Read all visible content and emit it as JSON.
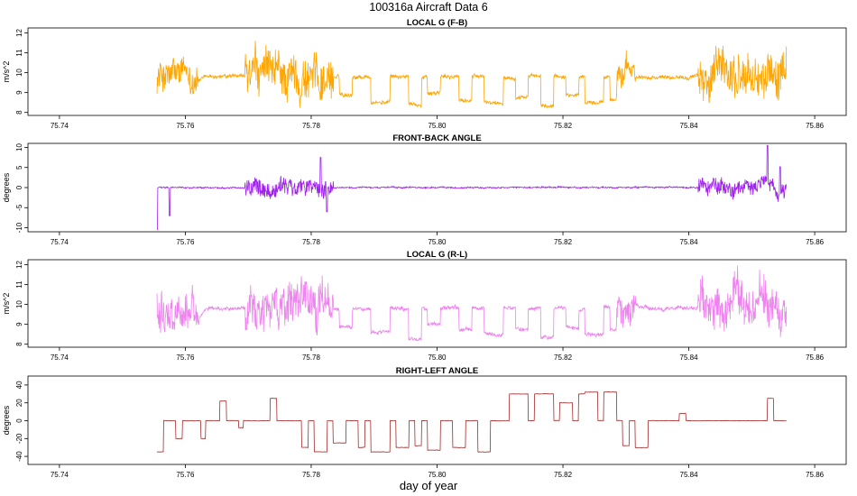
{
  "figure": {
    "title": "100316a   Aircraft Data 6",
    "xlabel": "day of year"
  },
  "chart_data": [
    {
      "type": "line",
      "title": "LOCAL G (F-B)",
      "ylabel": "m/s^2",
      "color": "#FFA500",
      "xlim": [
        75.735,
        75.865
      ],
      "ylim": [
        7.85,
        12.25
      ],
      "xticks": [
        75.74,
        75.76,
        75.78,
        75.8,
        75.82,
        75.84,
        75.86
      ],
      "yticks": [
        8,
        9,
        10,
        11,
        12
      ],
      "x_range": [
        75.7555,
        75.8555
      ],
      "baseline": 9.8,
      "noise_amp": 0.8,
      "noisy_segments": [
        [
          75.7555,
          75.762,
          0.8
        ],
        [
          75.7695,
          75.7835,
          1.1
        ],
        [
          75.8285,
          75.8315,
          0.7
        ],
        [
          75.8415,
          75.8555,
          1.1
        ]
      ],
      "steps": [
        {
          "x0": 75.7845,
          "x1": 75.7865,
          "y": 8.9
        },
        {
          "x0": 75.7895,
          "x1": 75.7925,
          "y": 8.5
        },
        {
          "x0": 75.7955,
          "x1": 75.7975,
          "y": 8.4
        },
        {
          "x0": 75.7985,
          "x1": 75.8005,
          "y": 9.0
        },
        {
          "x0": 75.8035,
          "x1": 75.8055,
          "y": 8.6
        },
        {
          "x0": 75.8075,
          "x1": 75.8105,
          "y": 8.5
        },
        {
          "x0": 75.8125,
          "x1": 75.8145,
          "y": 8.8
        },
        {
          "x0": 75.8165,
          "x1": 75.8185,
          "y": 8.3
        },
        {
          "x0": 75.8205,
          "x1": 75.8225,
          "y": 8.9
        },
        {
          "x0": 75.8235,
          "x1": 75.8265,
          "y": 8.5
        },
        {
          "x0": 75.8275,
          "x1": 75.8285,
          "y": 8.7
        }
      ]
    },
    {
      "type": "line",
      "title": "FRONT-BACK ANGLE",
      "ylabel": "degrees",
      "color": "#A020F0",
      "xlim": [
        75.735,
        75.865
      ],
      "ylim": [
        -11,
        11
      ],
      "xticks": [
        75.74,
        75.76,
        75.78,
        75.8,
        75.82,
        75.84,
        75.86
      ],
      "yticks": [
        -10,
        -5,
        0,
        5,
        10
      ],
      "x_range": [
        75.7555,
        75.8555
      ],
      "baseline": 0,
      "noise_amp": 1.5,
      "noisy_segments": [
        [
          75.7695,
          75.7835,
          2.2
        ],
        [
          75.8415,
          75.8555,
          2.0
        ]
      ],
      "spikes": [
        [
          75.7555,
          -10.5
        ],
        [
          75.7575,
          -7.0
        ],
        [
          75.7815,
          7.5
        ],
        [
          75.7825,
          -6.0
        ],
        [
          75.8525,
          10.5
        ],
        [
          75.8545,
          5.2
        ]
      ],
      "steps": []
    },
    {
      "type": "line",
      "title": "LOCAL G (R-L)",
      "ylabel": "m/s^2",
      "color": "#EE82EE",
      "xlim": [
        75.735,
        75.865
      ],
      "ylim": [
        7.85,
        12.25
      ],
      "xticks": [
        75.74,
        75.76,
        75.78,
        75.8,
        75.82,
        75.84,
        75.86
      ],
      "yticks": [
        8,
        9,
        10,
        11,
        12
      ],
      "x_range": [
        75.7555,
        75.8555
      ],
      "baseline": 9.8,
      "noise_amp": 0.8,
      "noisy_segments": [
        [
          75.7555,
          75.762,
          0.9
        ],
        [
          75.7695,
          75.7835,
          1.1
        ],
        [
          75.8285,
          75.8315,
          0.7
        ],
        [
          75.8415,
          75.8555,
          1.1
        ]
      ],
      "steps": [
        {
          "x0": 75.7845,
          "x1": 75.7865,
          "y": 8.9
        },
        {
          "x0": 75.7895,
          "x1": 75.7925,
          "y": 8.6
        },
        {
          "x0": 75.7955,
          "x1": 75.7975,
          "y": 8.3
        },
        {
          "x0": 75.7985,
          "x1": 75.8005,
          "y": 9.0
        },
        {
          "x0": 75.8035,
          "x1": 75.8055,
          "y": 8.7
        },
        {
          "x0": 75.8075,
          "x1": 75.8105,
          "y": 8.5
        },
        {
          "x0": 75.8125,
          "x1": 75.8145,
          "y": 8.8
        },
        {
          "x0": 75.8165,
          "x1": 75.8185,
          "y": 8.3
        },
        {
          "x0": 75.8205,
          "x1": 75.8225,
          "y": 8.9
        },
        {
          "x0": 75.8235,
          "x1": 75.8265,
          "y": 8.5
        },
        {
          "x0": 75.8275,
          "x1": 75.8285,
          "y": 8.7
        }
      ]
    },
    {
      "type": "line",
      "title": "RIGHT-LEFT ANGLE",
      "ylabel": "degrees",
      "color": "#A52A2A",
      "xlim": [
        75.735,
        75.865
      ],
      "ylim": [
        -49,
        50
      ],
      "xticks": [
        75.74,
        75.76,
        75.78,
        75.8,
        75.82,
        75.84,
        75.86
      ],
      "yticks": [
        -40,
        -20,
        0,
        20,
        40
      ],
      "x_range": [
        75.7555,
        75.8555
      ],
      "baseline": 0,
      "noise_amp": 2.0,
      "noisy_segments": [],
      "steps": [
        {
          "x0": 75.7555,
          "x1": 75.7565,
          "y": -35
        },
        {
          "x0": 75.7585,
          "x1": 75.7595,
          "y": -20
        },
        {
          "x0": 75.7625,
          "x1": 75.7632,
          "y": -20
        },
        {
          "x0": 75.7655,
          "x1": 75.7665,
          "y": 22
        },
        {
          "x0": 75.7685,
          "x1": 75.7692,
          "y": -8
        },
        {
          "x0": 75.7735,
          "x1": 75.7745,
          "y": 25
        },
        {
          "x0": 75.7785,
          "x1": 75.7795,
          "y": -30
        },
        {
          "x0": 75.7805,
          "x1": 75.7825,
          "y": -35
        },
        {
          "x0": 75.7835,
          "x1": 75.7855,
          "y": -25
        },
        {
          "x0": 75.7875,
          "x1": 75.7885,
          "y": -30
        },
        {
          "x0": 75.7895,
          "x1": 75.7925,
          "y": -35
        },
        {
          "x0": 75.7935,
          "x1": 75.7955,
          "y": -30
        },
        {
          "x0": 75.7965,
          "x1": 75.7975,
          "y": -28
        },
        {
          "x0": 75.7985,
          "x1": 75.8005,
          "y": -33
        },
        {
          "x0": 75.8025,
          "x1": 75.8045,
          "y": -30
        },
        {
          "x0": 75.8065,
          "x1": 75.8085,
          "y": -35
        },
        {
          "x0": 75.8115,
          "x1": 75.8145,
          "y": 30
        },
        {
          "x0": 75.8155,
          "x1": 75.8185,
          "y": 30
        },
        {
          "x0": 75.8195,
          "x1": 75.8215,
          "y": 20
        },
        {
          "x0": 75.8225,
          "x1": 75.8235,
          "y": 30
        },
        {
          "x0": 75.8235,
          "x1": 75.8255,
          "y": 32
        },
        {
          "x0": 75.8265,
          "x1": 75.8285,
          "y": 32
        },
        {
          "x0": 75.8295,
          "x1": 75.8305,
          "y": -28
        },
        {
          "x0": 75.8315,
          "x1": 75.8335,
          "y": -30
        },
        {
          "x0": 75.8385,
          "x1": 75.8395,
          "y": 8
        },
        {
          "x0": 75.8525,
          "x1": 75.8535,
          "y": 25
        }
      ]
    }
  ]
}
